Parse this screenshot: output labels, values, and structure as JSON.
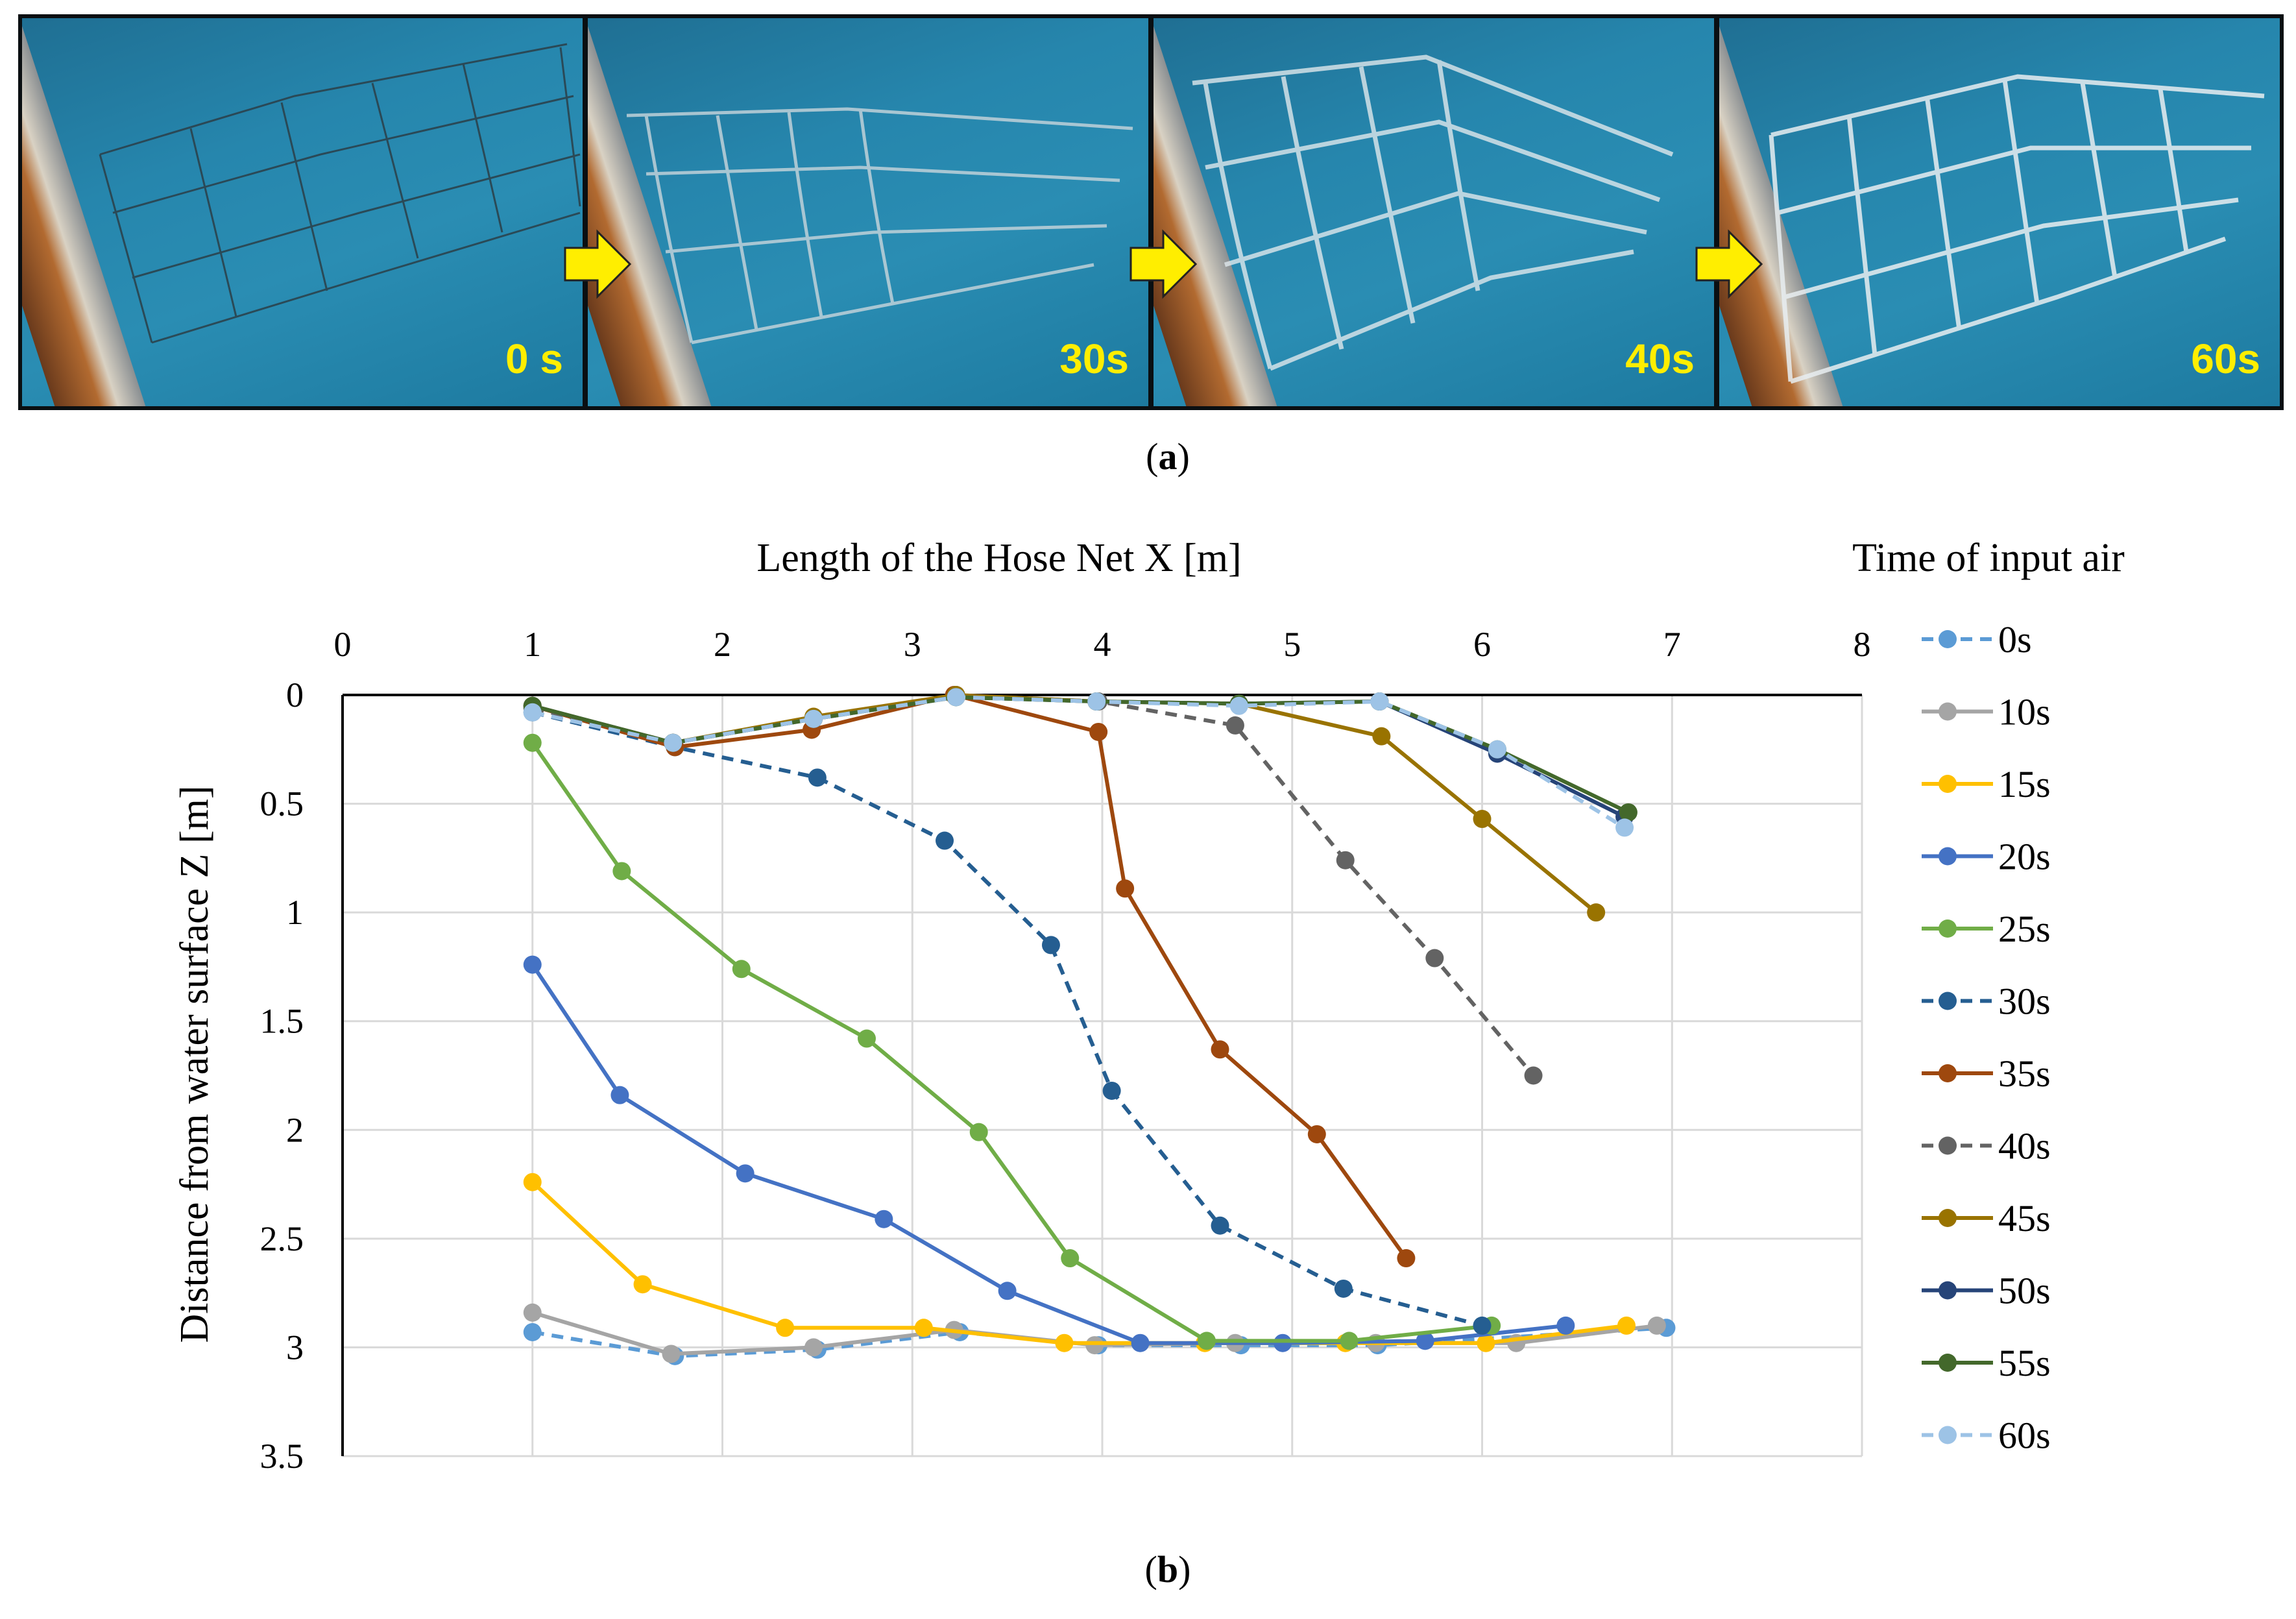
{
  "figure": {
    "panel_a_label": "a",
    "panel_b_label": "b",
    "photos": [
      {
        "stamp": "0 s"
      },
      {
        "stamp": "30s"
      },
      {
        "stamp": "40s"
      },
      {
        "stamp": "60s"
      }
    ],
    "colors": {
      "arrow": "#ffee00",
      "stamp": "#ffee00"
    }
  },
  "chart_data": {
    "type": "line",
    "title": "",
    "xlabel": "Length of the Hose Net X [m]",
    "ylabel": "Distance from water surface  Z [m]",
    "legend_title": "Time of input air",
    "legend_position": "right",
    "xlim": [
      0,
      8
    ],
    "ylim": [
      0,
      3.5
    ],
    "y_inverted": true,
    "x_axis_position": "top",
    "grid": true,
    "x_ticks": [
      "0",
      "1",
      "2",
      "3",
      "4",
      "5",
      "6",
      "7",
      "8"
    ],
    "y_ticks": [
      "0",
      "0.5",
      "1",
      "1.5",
      "2",
      "2.5",
      "3",
      "3.5"
    ],
    "series": [
      {
        "name": "0s",
        "color": "#5b9bd5",
        "dashed": true,
        "x": [
          1.0,
          1.75,
          2.5,
          3.25,
          3.98,
          4.73,
          5.45,
          6.97
        ],
        "y": [
          2.93,
          3.04,
          3.01,
          2.93,
          2.99,
          2.99,
          2.99,
          2.91
        ]
      },
      {
        "name": "10s",
        "color": "#a5a5a5",
        "dashed": false,
        "x": [
          1.0,
          1.73,
          2.48,
          3.22,
          3.96,
          4.7,
          5.44,
          6.18,
          6.92
        ],
        "y": [
          2.84,
          3.03,
          3.0,
          2.92,
          2.99,
          2.98,
          2.98,
          2.98,
          2.9
        ]
      },
      {
        "name": "15s",
        "color": "#ffc000",
        "dashed": false,
        "x": [
          1.0,
          1.58,
          2.33,
          3.06,
          3.8,
          4.54,
          5.28,
          6.02,
          6.76
        ],
        "y": [
          2.24,
          2.71,
          2.91,
          2.91,
          2.98,
          2.98,
          2.98,
          2.98,
          2.9
        ]
      },
      {
        "name": "20s",
        "color": "#4472c4",
        "dashed": false,
        "x": [
          1.0,
          1.46,
          2.12,
          2.85,
          3.5,
          4.2,
          4.95,
          5.7,
          6.44
        ],
        "y": [
          1.24,
          1.84,
          2.2,
          2.41,
          2.74,
          2.98,
          2.98,
          2.97,
          2.9
        ]
      },
      {
        "name": "25s",
        "color": "#70ad47",
        "dashed": false,
        "x": [
          1.0,
          1.47,
          2.1,
          2.76,
          3.35,
          3.83,
          4.55,
          5.3,
          6.05
        ],
        "y": [
          0.22,
          0.81,
          1.26,
          1.58,
          2.01,
          2.59,
          2.97,
          2.97,
          2.9
        ]
      },
      {
        "name": "30s",
        "color": "#255e91",
        "dashed": true,
        "x": [
          1.0,
          1.75,
          2.5,
          3.17,
          3.73,
          4.05,
          4.62,
          5.27,
          6.0
        ],
        "y": [
          0.08,
          0.24,
          0.38,
          0.67,
          1.15,
          1.82,
          2.44,
          2.73,
          2.9
        ]
      },
      {
        "name": "35s",
        "color": "#9e480e",
        "dashed": false,
        "x": [
          1.0,
          1.75,
          2.47,
          3.22,
          3.98,
          4.12,
          4.62,
          5.13,
          5.6
        ],
        "y": [
          0.05,
          0.24,
          0.16,
          0.0,
          0.17,
          0.89,
          1.63,
          2.02,
          2.59
        ]
      },
      {
        "name": "40s",
        "color": "#636363",
        "dashed": true,
        "x": [
          1.0,
          1.74,
          2.48,
          3.23,
          3.98,
          4.7,
          5.28,
          5.75,
          6.27
        ],
        "y": [
          0.06,
          0.22,
          0.11,
          0.0,
          0.03,
          0.14,
          0.76,
          1.21,
          1.75
        ]
      },
      {
        "name": "45s",
        "color": "#997300",
        "dashed": false,
        "x": [
          1.0,
          1.74,
          2.48,
          3.23,
          3.97,
          4.72,
          5.47,
          6.0,
          6.6
        ],
        "y": [
          0.05,
          0.22,
          0.1,
          0.0,
          0.03,
          0.04,
          0.19,
          0.57,
          1.0
        ]
      },
      {
        "name": "50s",
        "color": "#264478",
        "dashed": false,
        "x": [
          1.0,
          1.74,
          2.48,
          3.23,
          3.97,
          4.72,
          5.46,
          6.08,
          6.75
        ],
        "y": [
          0.05,
          0.22,
          0.11,
          0.01,
          0.03,
          0.04,
          0.03,
          0.27,
          0.56
        ]
      },
      {
        "name": "55s",
        "color": "#43682b",
        "dashed": false,
        "x": [
          1.0,
          1.74,
          2.48,
          3.23,
          3.97,
          4.72,
          5.46,
          6.08,
          6.77
        ],
        "y": [
          0.05,
          0.22,
          0.11,
          0.01,
          0.03,
          0.04,
          0.03,
          0.25,
          0.54
        ]
      },
      {
        "name": "60s",
        "color": "#9dc3e6",
        "dashed": true,
        "x": [
          1.0,
          1.74,
          2.48,
          3.23,
          3.97,
          4.72,
          5.46,
          6.08,
          6.75
        ],
        "y": [
          0.08,
          0.22,
          0.11,
          0.01,
          0.03,
          0.05,
          0.03,
          0.25,
          0.61
        ]
      }
    ]
  }
}
